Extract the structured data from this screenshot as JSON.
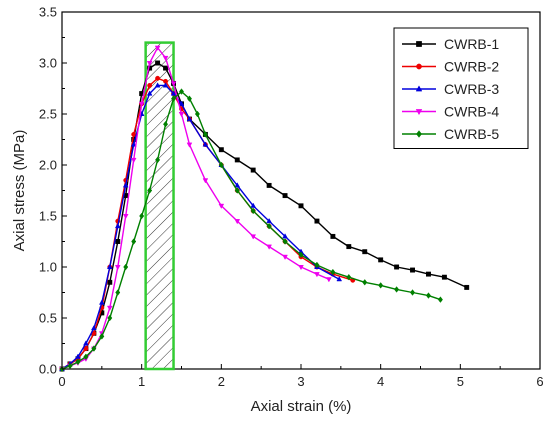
{
  "chart_data": {
    "type": "line",
    "title": "",
    "xlabel": "Axial strain (%)",
    "ylabel": "Axial stress (MPa)",
    "xlim": [
      0,
      6
    ],
    "ylim": [
      0,
      3.5
    ],
    "x_ticks": [
      "0",
      "1",
      "2",
      "3",
      "4",
      "5",
      "6"
    ],
    "y_ticks": [
      "0.0",
      "0.5",
      "1.0",
      "1.5",
      "2.0",
      "2.5",
      "3.0",
      "3.5"
    ],
    "grid": false,
    "legend_position": "top-right",
    "highlight_region": {
      "x_range": [
        1.05,
        1.4
      ],
      "y_range": [
        0,
        3.2
      ],
      "color": "#33cc33",
      "pattern": "hatched"
    },
    "series": [
      {
        "name": "CWRB-1",
        "color": "#000000",
        "marker": "square",
        "points": [
          [
            0,
            0
          ],
          [
            0.1,
            0.05
          ],
          [
            0.2,
            0.1
          ],
          [
            0.3,
            0.2
          ],
          [
            0.4,
            0.35
          ],
          [
            0.5,
            0.55
          ],
          [
            0.6,
            0.85
          ],
          [
            0.7,
            1.25
          ],
          [
            0.8,
            1.7
          ],
          [
            0.9,
            2.25
          ],
          [
            1.0,
            2.7
          ],
          [
            1.1,
            2.95
          ],
          [
            1.2,
            3.0
          ],
          [
            1.3,
            2.95
          ],
          [
            1.4,
            2.8
          ],
          [
            1.5,
            2.6
          ],
          [
            1.6,
            2.45
          ],
          [
            1.8,
            2.3
          ],
          [
            2.0,
            2.15
          ],
          [
            2.2,
            2.05
          ],
          [
            2.4,
            1.95
          ],
          [
            2.6,
            1.8
          ],
          [
            2.8,
            1.7
          ],
          [
            3.0,
            1.6
          ],
          [
            3.2,
            1.45
          ],
          [
            3.4,
            1.3
          ],
          [
            3.6,
            1.2
          ],
          [
            3.8,
            1.15
          ],
          [
            4.0,
            1.07
          ],
          [
            4.2,
            1.0
          ],
          [
            4.4,
            0.97
          ],
          [
            4.6,
            0.93
          ],
          [
            4.8,
            0.9
          ],
          [
            5.08,
            0.8
          ]
        ]
      },
      {
        "name": "CWRB-2",
        "color": "#ee0000",
        "marker": "circle",
        "points": [
          [
            0,
            0
          ],
          [
            0.1,
            0.05
          ],
          [
            0.2,
            0.1
          ],
          [
            0.3,
            0.2
          ],
          [
            0.4,
            0.35
          ],
          [
            0.5,
            0.6
          ],
          [
            0.6,
            1.0
          ],
          [
            0.7,
            1.45
          ],
          [
            0.8,
            1.85
          ],
          [
            0.9,
            2.3
          ],
          [
            1.0,
            2.6
          ],
          [
            1.1,
            2.78
          ],
          [
            1.2,
            2.85
          ],
          [
            1.3,
            2.82
          ],
          [
            1.4,
            2.7
          ],
          [
            1.5,
            2.55
          ],
          [
            1.6,
            2.45
          ],
          [
            1.8,
            2.2
          ],
          [
            2.0,
            2.0
          ],
          [
            2.2,
            1.75
          ],
          [
            2.4,
            1.55
          ],
          [
            2.6,
            1.4
          ],
          [
            2.8,
            1.25
          ],
          [
            3.0,
            1.1
          ],
          [
            3.2,
            1.0
          ],
          [
            3.4,
            0.93
          ],
          [
            3.65,
            0.87
          ]
        ]
      },
      {
        "name": "CWRB-3",
        "color": "#0000dd",
        "marker": "triangle",
        "points": [
          [
            0,
            0
          ],
          [
            0.1,
            0.05
          ],
          [
            0.2,
            0.12
          ],
          [
            0.3,
            0.25
          ],
          [
            0.4,
            0.4
          ],
          [
            0.5,
            0.65
          ],
          [
            0.6,
            1.0
          ],
          [
            0.7,
            1.4
          ],
          [
            0.8,
            1.8
          ],
          [
            0.9,
            2.2
          ],
          [
            1.0,
            2.5
          ],
          [
            1.1,
            2.7
          ],
          [
            1.2,
            2.78
          ],
          [
            1.3,
            2.78
          ],
          [
            1.4,
            2.7
          ],
          [
            1.5,
            2.6
          ],
          [
            1.6,
            2.45
          ],
          [
            1.8,
            2.2
          ],
          [
            2.0,
            2.0
          ],
          [
            2.2,
            1.8
          ],
          [
            2.4,
            1.6
          ],
          [
            2.6,
            1.45
          ],
          [
            2.8,
            1.3
          ],
          [
            3.0,
            1.15
          ],
          [
            3.2,
            1.0
          ],
          [
            3.48,
            0.88
          ]
        ]
      },
      {
        "name": "CWRB-4",
        "color": "#ee00ee",
        "marker": "triangle-down",
        "points": [
          [
            0,
            0
          ],
          [
            0.1,
            0.03
          ],
          [
            0.2,
            0.06
          ],
          [
            0.3,
            0.1
          ],
          [
            0.4,
            0.2
          ],
          [
            0.5,
            0.35
          ],
          [
            0.6,
            0.6
          ],
          [
            0.7,
            1.0
          ],
          [
            0.8,
            1.5
          ],
          [
            0.9,
            2.05
          ],
          [
            1.0,
            2.6
          ],
          [
            1.1,
            3.0
          ],
          [
            1.2,
            3.15
          ],
          [
            1.3,
            3.05
          ],
          [
            1.4,
            2.8
          ],
          [
            1.5,
            2.5
          ],
          [
            1.6,
            2.2
          ],
          [
            1.8,
            1.85
          ],
          [
            2.0,
            1.6
          ],
          [
            2.2,
            1.45
          ],
          [
            2.4,
            1.3
          ],
          [
            2.6,
            1.2
          ],
          [
            2.8,
            1.1
          ],
          [
            3.0,
            1.0
          ],
          [
            3.2,
            0.93
          ],
          [
            3.35,
            0.88
          ]
        ]
      },
      {
        "name": "CWRB-5",
        "color": "#008000",
        "marker": "diamond",
        "points": [
          [
            0,
            0
          ],
          [
            0.1,
            0.03
          ],
          [
            0.2,
            0.07
          ],
          [
            0.3,
            0.12
          ],
          [
            0.4,
            0.2
          ],
          [
            0.5,
            0.32
          ],
          [
            0.6,
            0.5
          ],
          [
            0.7,
            0.75
          ],
          [
            0.8,
            1.0
          ],
          [
            0.9,
            1.25
          ],
          [
            1.0,
            1.5
          ],
          [
            1.1,
            1.75
          ],
          [
            1.2,
            2.05
          ],
          [
            1.3,
            2.4
          ],
          [
            1.4,
            2.65
          ],
          [
            1.5,
            2.72
          ],
          [
            1.6,
            2.65
          ],
          [
            1.7,
            2.5
          ],
          [
            1.8,
            2.3
          ],
          [
            2.0,
            2.0
          ],
          [
            2.2,
            1.75
          ],
          [
            2.4,
            1.55
          ],
          [
            2.6,
            1.4
          ],
          [
            2.8,
            1.25
          ],
          [
            3.0,
            1.12
          ],
          [
            3.2,
            1.02
          ],
          [
            3.4,
            0.95
          ],
          [
            3.6,
            0.9
          ],
          [
            3.8,
            0.85
          ],
          [
            4.0,
            0.82
          ],
          [
            4.2,
            0.78
          ],
          [
            4.4,
            0.75
          ],
          [
            4.6,
            0.72
          ],
          [
            4.75,
            0.68
          ]
        ]
      }
    ]
  }
}
